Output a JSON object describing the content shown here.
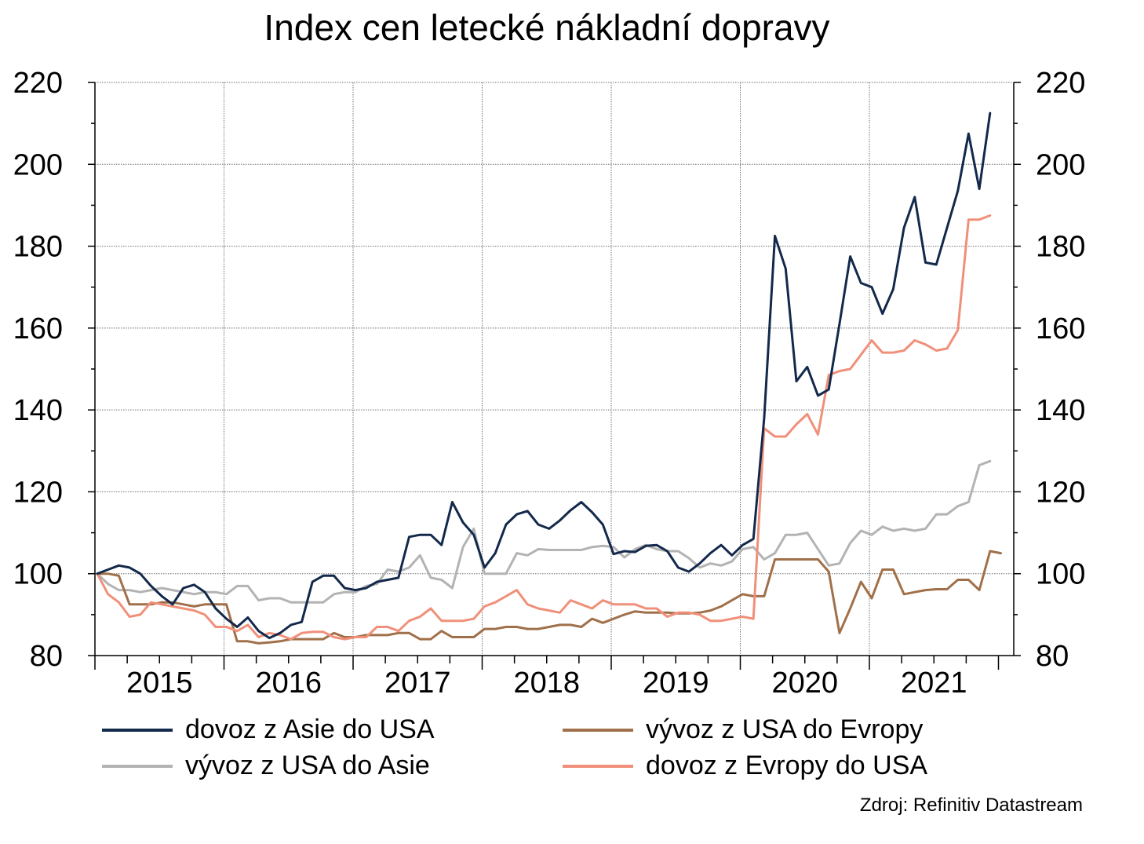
{
  "title": "Index cen letecké nákladní dopravy",
  "source": "Zdroj: Refinitiv Datastream",
  "chart_data": {
    "type": "line",
    "title": "Index cen letecké nákladní dopravy",
    "xlabel": "",
    "ylabel": "",
    "ylim": [
      80,
      220
    ],
    "y_ticks": [
      80,
      100,
      120,
      140,
      160,
      180,
      200,
      220
    ],
    "y_tick_labels": [
      "80",
      "100",
      "120",
      "140",
      "160",
      "180",
      "200",
      "220"
    ],
    "x_start": "2015-01",
    "x_end": "2021-11",
    "x_tick_labels": [
      "2015",
      "2016",
      "2017",
      "2018",
      "2019",
      "2020",
      "2021"
    ],
    "grid": true,
    "secondary_y_axis": true,
    "legend_position": "bottom",
    "series": [
      {
        "name": "dovoz z Asie do USA",
        "color": "#13294b",
        "values": [
          100,
          101,
          102,
          101.5,
          100,
          97,
          94.5,
          92.5,
          96.5,
          97.3,
          95.5,
          91.5,
          89,
          87,
          89.3,
          86,
          84.3,
          85.5,
          87.5,
          88.2,
          98,
          99.5,
          99.5,
          96.5,
          96,
          96.5,
          98,
          98.5,
          99,
          109,
          109.5,
          109.5,
          107,
          117.5,
          112.5,
          109.5,
          101.5,
          105,
          112,
          114.5,
          115.3,
          112,
          111,
          113,
          115.5,
          117.5,
          115,
          112,
          104.8,
          105.5,
          105.3,
          106.8,
          107,
          105.5,
          101.5,
          100.5,
          102.5,
          105,
          107,
          104.5,
          107,
          108.5,
          138,
          182.5,
          174.5,
          147,
          150.5,
          143.5,
          145,
          161,
          177.5,
          171,
          170,
          163.5,
          169.5,
          184.5,
          192,
          176,
          175.5,
          184.5,
          193.5,
          207.5,
          194,
          212.5
        ]
      },
      {
        "name": "vývoz z USA do Evropy",
        "color": "#a0704a",
        "values": [
          100,
          100,
          99.5,
          92.5,
          92.5,
          92.5,
          93,
          93,
          92.5,
          92,
          92.5,
          92.5,
          92.5,
          83.5,
          83.5,
          83,
          83.2,
          83.5,
          84,
          84,
          84,
          84,
          85.5,
          84.5,
          84.5,
          85,
          85,
          85,
          85.5,
          85.5,
          84,
          84,
          86,
          84.5,
          84.5,
          84.5,
          86.5,
          86.5,
          87,
          87,
          86.5,
          86.5,
          87,
          87.5,
          87.5,
          87,
          89,
          88,
          89,
          90,
          90.8,
          90.5,
          90.5,
          90.5,
          90.3,
          90.3,
          90.5,
          91,
          92,
          93.5,
          95,
          94.5,
          94.5,
          103.5,
          103.5,
          103.5,
          103.5,
          103.5,
          100.5,
          85.5,
          91.5,
          98,
          94,
          101,
          101,
          95,
          95.5,
          96,
          96.2,
          96.2,
          98.5,
          98.5,
          96,
          105.5,
          105
        ]
      },
      {
        "name": "vývoz z USA do Asie",
        "color": "#b3b3b3",
        "values": [
          100,
          97.5,
          96,
          96,
          95.5,
          96,
          96.5,
          96,
          95.5,
          95,
          95.5,
          95.5,
          95,
          97,
          97,
          93.5,
          94,
          94,
          93,
          93,
          93,
          93,
          95,
          95.5,
          95.5,
          97,
          97.5,
          101,
          100.5,
          101.5,
          104.5,
          99,
          98.5,
          96.5,
          106.5,
          111,
          100,
          100,
          100,
          105,
          104.5,
          106,
          105.8,
          105.8,
          105.8,
          105.8,
          106.5,
          106.8,
          106.5,
          104,
          106,
          107,
          106,
          105.5,
          105.5,
          103.8,
          101.5,
          102.5,
          102,
          103,
          106,
          106.5,
          103.5,
          105,
          109.5,
          109.5,
          110,
          106,
          102,
          102.5,
          107.5,
          110.5,
          109.5,
          111.5,
          110.5,
          111,
          110.5,
          111,
          114.5,
          114.5,
          116.5,
          117.5,
          126.5,
          127.5
        ]
      },
      {
        "name": "dovoz z Evropy do USA",
        "color": "#f0907a",
        "values": [
          100,
          95,
          93,
          89.5,
          90,
          93,
          92.5,
          92,
          91.5,
          91,
          90,
          87,
          87,
          86,
          87.5,
          84.5,
          85.5,
          85,
          84,
          85.5,
          85.8,
          85.8,
          84.5,
          84,
          84.5,
          84.5,
          87,
          87,
          86,
          88.5,
          89.5,
          91.5,
          88.5,
          88.5,
          88.5,
          89,
          92,
          93,
          94.5,
          96,
          92.5,
          91.5,
          91,
          90.5,
          93.5,
          92.5,
          91.5,
          93.5,
          92.5,
          92.5,
          92.5,
          91.5,
          91.5,
          89.5,
          90.5,
          90.5,
          90,
          88.5,
          88.5,
          89,
          89.5,
          89,
          135.5,
          133.5,
          133.5,
          136.5,
          139,
          134,
          148.5,
          149.5,
          150,
          153.5,
          157,
          154,
          154,
          154.5,
          157,
          156,
          154.5,
          155,
          159.5,
          186.5,
          186.5,
          187.5
        ]
      }
    ]
  }
}
